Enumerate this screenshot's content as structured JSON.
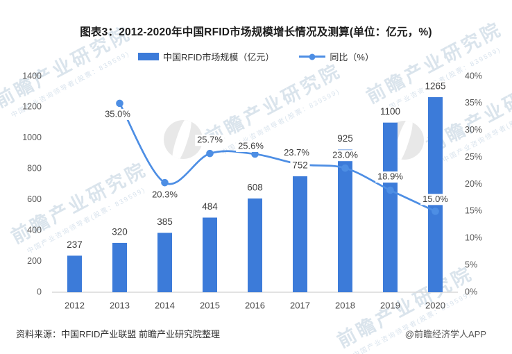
{
  "title": "图表3：2012-2020年中国RFID市场规模增长情况及测算(单位：亿元，%)",
  "chart_data": {
    "type": "bar+line combo",
    "categories": [
      "2012",
      "2013",
      "2014",
      "2015",
      "2016",
      "2017",
      "2018",
      "2019",
      "2020"
    ],
    "series": [
      {
        "name": "中国RFID市场规模（亿元）",
        "type": "bar",
        "axis": "left",
        "color": "#3c7bd9",
        "values": [
          237,
          320,
          385,
          484,
          608,
          752,
          925,
          1100,
          1265
        ]
      },
      {
        "name": "同比（%）",
        "type": "line",
        "axis": "right",
        "color": "#4d8ee4",
        "values": [
          null,
          35.0,
          20.3,
          25.7,
          25.6,
          23.7,
          23.0,
          18.9,
          15.0
        ],
        "point_labels": [
          null,
          "35.0%",
          "20.3%",
          "25.7%",
          "25.6%",
          "23.7%",
          "23.0%",
          "18.9%",
          "15.0%"
        ]
      }
    ],
    "left_axis": {
      "min": 0,
      "max": 1400,
      "step": 200,
      "ticks": [
        "0",
        "200",
        "400",
        "600",
        "800",
        "1000",
        "1200",
        "1400"
      ]
    },
    "right_axis": {
      "min": 0,
      "max": 40,
      "step": 5,
      "ticks": [
        "0%",
        "5%",
        "10%",
        "15%",
        "20%",
        "25%",
        "30%",
        "35%",
        "40%"
      ]
    },
    "grid": false,
    "legend_position": "top"
  },
  "colors": {
    "bar": "#3c7bd9",
    "line": "#4d8ee4",
    "axis_text": "#595959",
    "data_label": "#3d3d3d",
    "baseline": "#d9d9d9"
  },
  "watermark": {
    "big": "前瞻产业研究院",
    "small": "中国产业咨询领导者(股票：839599)"
  },
  "footer": {
    "source": "资料来源：中国RFID产业联盟 前瞻产业研究院整理",
    "credit": "@前瞻经济学人APP"
  }
}
